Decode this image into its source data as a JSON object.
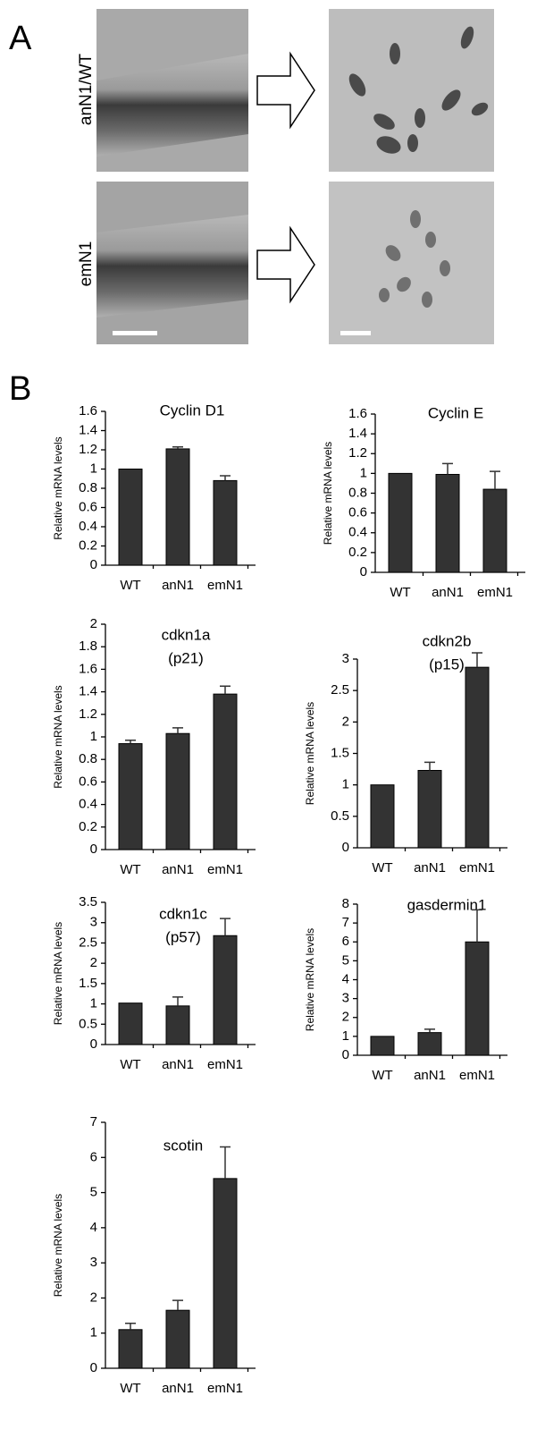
{
  "panel_a": {
    "label": "A",
    "rows": [
      "anN1/WT",
      "emN1"
    ]
  },
  "panel_b": {
    "label": "B"
  },
  "chart_data": [
    {
      "type": "bar",
      "title": "Cyclin D1",
      "y_label": "Relative mRNA levels",
      "categories": [
        "WT",
        "anN1",
        "emN1"
      ],
      "values": [
        1.0,
        1.21,
        0.88
      ],
      "errors": [
        null,
        0.02,
        0.05
      ],
      "color": "#333333",
      "ylim": [
        0,
        1.6
      ],
      "yticks": [
        0,
        0.2,
        0.4,
        0.6,
        0.8,
        1,
        1.2,
        1.4,
        1.6
      ]
    },
    {
      "type": "bar",
      "title": "Cyclin E",
      "y_label": "Relative mRNA levels",
      "categories": [
        "WT",
        "anN1",
        "emN1"
      ],
      "values": [
        1.0,
        0.99,
        0.84
      ],
      "errors": [
        null,
        0.11,
        0.18
      ],
      "color": "#333333",
      "ylim": [
        0,
        1.6
      ],
      "yticks": [
        0,
        0.2,
        0.4,
        0.6,
        0.8,
        1,
        1.2,
        1.4,
        1.6
      ]
    },
    {
      "type": "bar",
      "title": "cdkn1a",
      "subtitle": "(p21)",
      "y_label": "Relative mRNA levels",
      "categories": [
        "WT",
        "anN1",
        "emN1"
      ],
      "values": [
        0.94,
        1.03,
        1.38
      ],
      "errors": [
        0.03,
        0.05,
        0.07
      ],
      "color": "#333333",
      "ylim": [
        0,
        2
      ],
      "yticks": [
        0,
        0.2,
        0.4,
        0.6,
        0.8,
        1,
        1.2,
        1.4,
        1.6,
        1.8,
        2
      ]
    },
    {
      "type": "bar",
      "title": "cdkn2b",
      "subtitle": "(p15)",
      "y_label": "Relative mRNA levels",
      "categories": [
        "WT",
        "anN1",
        "emN1"
      ],
      "values": [
        1.0,
        1.23,
        2.87
      ],
      "errors": [
        null,
        0.13,
        0.23
      ],
      "color": "#333333",
      "ylim": [
        0,
        3
      ],
      "yticks": [
        0,
        0.5,
        1,
        1.5,
        2,
        2.5,
        3
      ]
    },
    {
      "type": "bar",
      "title": "cdkn1c",
      "subtitle": "(p57)",
      "y_label": "Relative mRNA levels",
      "categories": [
        "WT",
        "anN1",
        "emN1"
      ],
      "values": [
        1.02,
        0.95,
        2.68
      ],
      "errors": [
        null,
        0.22,
        0.42
      ],
      "color": "#333333",
      "ylim": [
        0,
        3.5
      ],
      "yticks": [
        0,
        0.5,
        1,
        1.5,
        2,
        2.5,
        3,
        3.5
      ]
    },
    {
      "type": "bar",
      "title": "gasdermin1",
      "y_label": "Relative mRNA levels",
      "categories": [
        "WT",
        "anN1",
        "emN1"
      ],
      "values": [
        1.0,
        1.2,
        6.0
      ],
      "errors": [
        null,
        0.18,
        1.7
      ],
      "color": "#333333",
      "ylim": [
        0,
        8
      ],
      "yticks": [
        0,
        1,
        2,
        3,
        4,
        5,
        6,
        7,
        8
      ]
    },
    {
      "type": "bar",
      "title": "scotin",
      "y_label": "Relative mRNA levels",
      "categories": [
        "WT",
        "anN1",
        "emN1"
      ],
      "values": [
        1.1,
        1.65,
        5.4
      ],
      "errors": [
        0.18,
        0.28,
        0.9
      ],
      "color": "#333333",
      "ylim": [
        0,
        7
      ],
      "yticks": [
        0,
        1,
        2,
        3,
        4,
        5,
        6,
        7
      ]
    }
  ]
}
